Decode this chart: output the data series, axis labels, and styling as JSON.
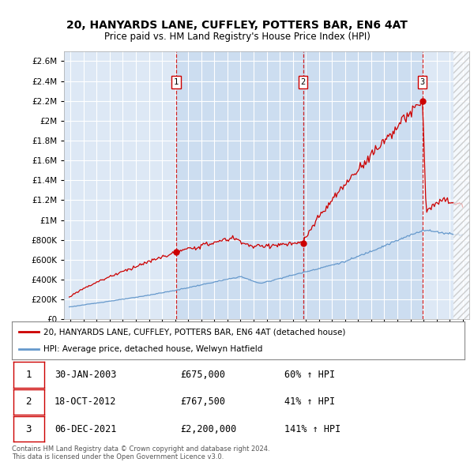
{
  "title": "20, HANYARDS LANE, CUFFLEY, POTTERS BAR, EN6 4AT",
  "subtitle": "Price paid vs. HM Land Registry's House Price Index (HPI)",
  "red_label": "20, HANYARDS LANE, CUFFLEY, POTTERS BAR, EN6 4AT (detached house)",
  "blue_label": "HPI: Average price, detached house, Welwyn Hatfield",
  "sale_dates": [
    "30-JAN-2003",
    "18-OCT-2012",
    "06-DEC-2021"
  ],
  "sale_prices": [
    675000,
    767500,
    2200000
  ],
  "sale_pct": [
    "60% ↑ HPI",
    "41% ↑ HPI",
    "141% ↑ HPI"
  ],
  "sale_years": [
    2003.08,
    2012.79,
    2021.92
  ],
  "ylim": [
    0,
    2700000
  ],
  "xlim": [
    1994.5,
    2025.5
  ],
  "plot_bg": "#dde8f5",
  "highlight_bg": "#ccddf0",
  "grid_color": "#ffffff",
  "red_color": "#cc0000",
  "blue_color": "#6699cc",
  "dashed_color": "#cc0000",
  "footnote": "Contains HM Land Registry data © Crown copyright and database right 2024.\nThis data is licensed under the Open Government Licence v3.0."
}
